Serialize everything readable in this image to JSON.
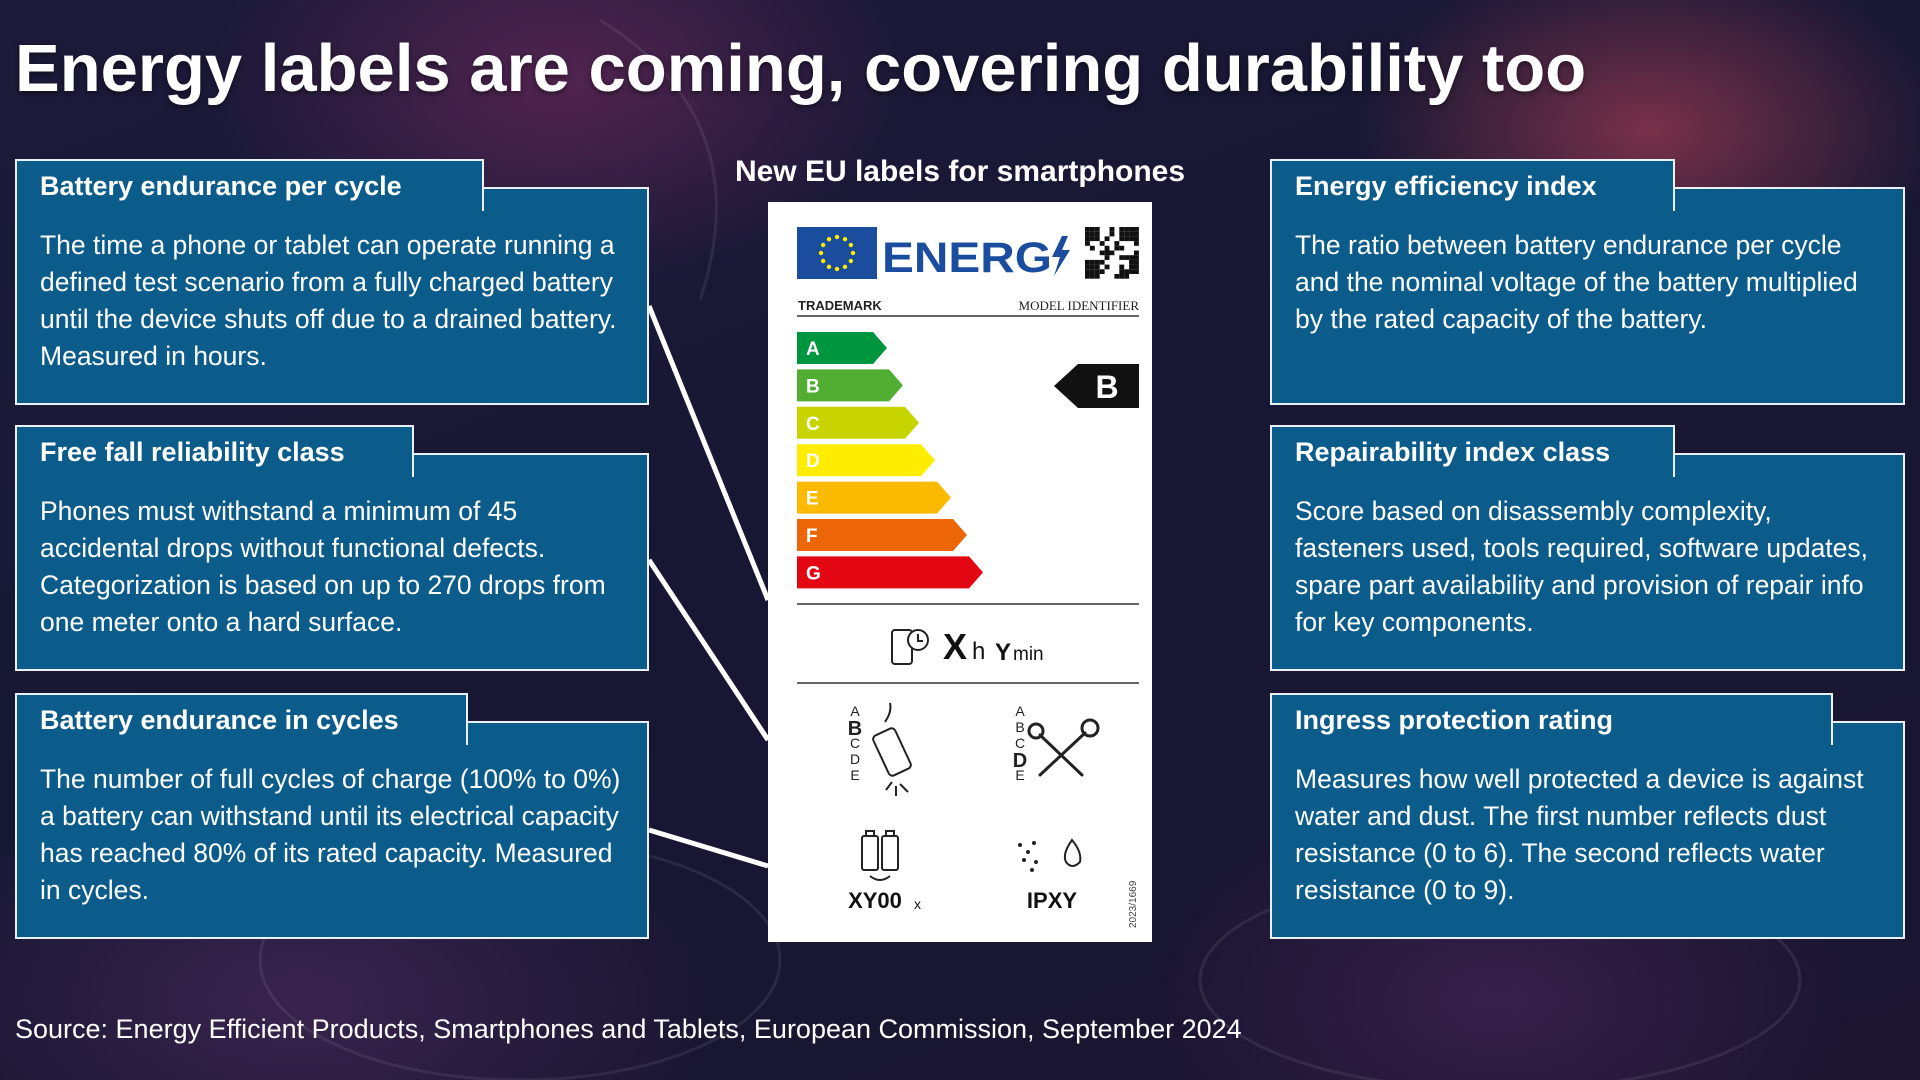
{
  "title": "Energy labels are coming, covering durability too",
  "label_heading": "New EU labels for smartphones",
  "panels": [
    {
      "heading": "Battery endurance per cycle",
      "body": "The time a phone or tablet can operate running a defined test scenario from a fully charged battery until the device shuts off due to a drained battery. Measured in hours."
    },
    {
      "heading": "Free fall reliability class",
      "body": "Phones must withstand a minimum of 45 accidental drops without functional defects. Categorization is based on up to 270 drops from one meter onto a hard surface."
    },
    {
      "heading": "Battery endurance in cycles",
      "body": "The number of full cycles of charge (100% to 0%) a battery can withstand until its electrical capacity has reached 80% of its rated capacity. Measured in cycles."
    },
    {
      "heading": "Energy efficiency index",
      "body": "The ratio between battery endurance per cycle and the nominal voltage of the battery multiplied by the rated capacity of the battery."
    },
    {
      "heading": "Repairability index class",
      "body": "Score based on disassembly complexity, fasteners used, tools required, software updates, spare part availability and provision of repair info for key components."
    },
    {
      "heading": "Ingress protection rating",
      "body": "Measures how well protected a device is against water and dust. The first number reflects dust resistance (0 to 6). The second reflects water resistance (0 to 9)."
    }
  ],
  "energy_label": {
    "logo": "ENERG",
    "trademark": "TRADEMARK",
    "model_identifier": "MODEL IDENTIFIER",
    "classes": [
      "A",
      "B",
      "C",
      "D",
      "E",
      "F",
      "G"
    ],
    "class_colors": [
      "#00963f",
      "#52ae32",
      "#c8d400",
      "#ffed00",
      "#fbba00",
      "#ec6608",
      "#e30613"
    ],
    "rating": "B",
    "endurance": {
      "x": "X",
      "x_unit": "h",
      "y": "Y",
      "y_unit": "min"
    },
    "fall_classes": [
      "A",
      "B",
      "C",
      "D",
      "E"
    ],
    "fall_rating": "B",
    "repair_classes": [
      "A",
      "B",
      "C",
      "D",
      "E"
    ],
    "repair_rating": "D",
    "cycles": {
      "value": "XY00",
      "unit": "x"
    },
    "ip": "IPXY",
    "regulation": "2023/1669"
  },
  "source": "Source: Energy Efficient Products, Smartphones and Tablets, European Commission, September 2024"
}
